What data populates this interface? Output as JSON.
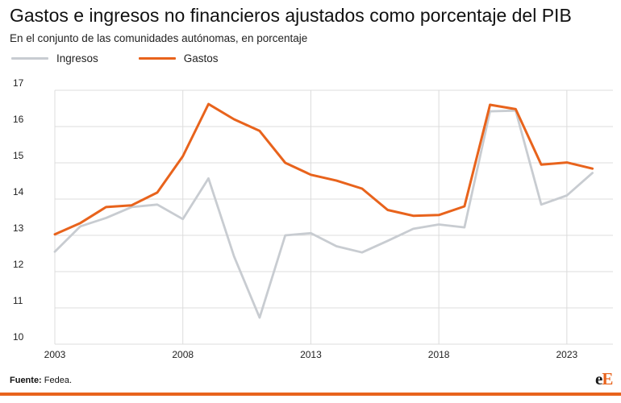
{
  "header": {
    "title": "Gastos e ingresos no financieros ajustados como porcentaje del PIB",
    "subtitle": "En el conjunto de las comunidades autónomas, en porcentaje"
  },
  "footer": {
    "source_label": "Fuente:",
    "source_text": "Fedea.",
    "logo_part1": "e",
    "logo_part2": "E"
  },
  "colors": {
    "gastos": "#e8631c",
    "ingresos": "#c8ccd1",
    "grid": "#dcdcdc",
    "accent_bar": "#e8631c"
  },
  "chart_data": {
    "type": "line",
    "title": "Gastos e ingresos no financieros ajustados como porcentaje del PIB",
    "subtitle": "En el conjunto de las comunidades autónomas, en porcentaje",
    "xlabel": "",
    "ylabel": "",
    "x": [
      2003,
      2004,
      2005,
      2006,
      2007,
      2008,
      2009,
      2010,
      2011,
      2012,
      2013,
      2014,
      2015,
      2016,
      2017,
      2018,
      2019,
      2020,
      2021,
      2022,
      2023,
      2024
    ],
    "x_ticks": [
      "2003",
      "2008",
      "2013",
      "2018",
      "2023"
    ],
    "y_ticks": [
      "10",
      "11",
      "12",
      "13",
      "14",
      "15",
      "16",
      "17"
    ],
    "xlim": [
      2003,
      2024.8
    ],
    "ylim": [
      10,
      17
    ],
    "grid": true,
    "legend_position": "top-left",
    "series": [
      {
        "name": "Ingresos",
        "color": "#c8ccd1",
        "values": [
          12.55,
          13.25,
          13.48,
          13.78,
          13.85,
          13.45,
          14.57,
          12.42,
          10.73,
          13.0,
          13.06,
          12.7,
          12.53,
          12.85,
          13.18,
          13.3,
          13.22,
          16.42,
          16.44,
          13.85,
          14.1,
          14.72
        ]
      },
      {
        "name": "Gastos",
        "color": "#e8631c",
        "values": [
          13.03,
          13.34,
          13.78,
          13.83,
          14.18,
          15.18,
          16.62,
          16.2,
          15.88,
          15.0,
          14.67,
          14.51,
          14.29,
          13.7,
          13.54,
          13.56,
          13.8,
          16.6,
          16.48,
          14.95,
          15.01,
          14.84
        ]
      }
    ]
  }
}
